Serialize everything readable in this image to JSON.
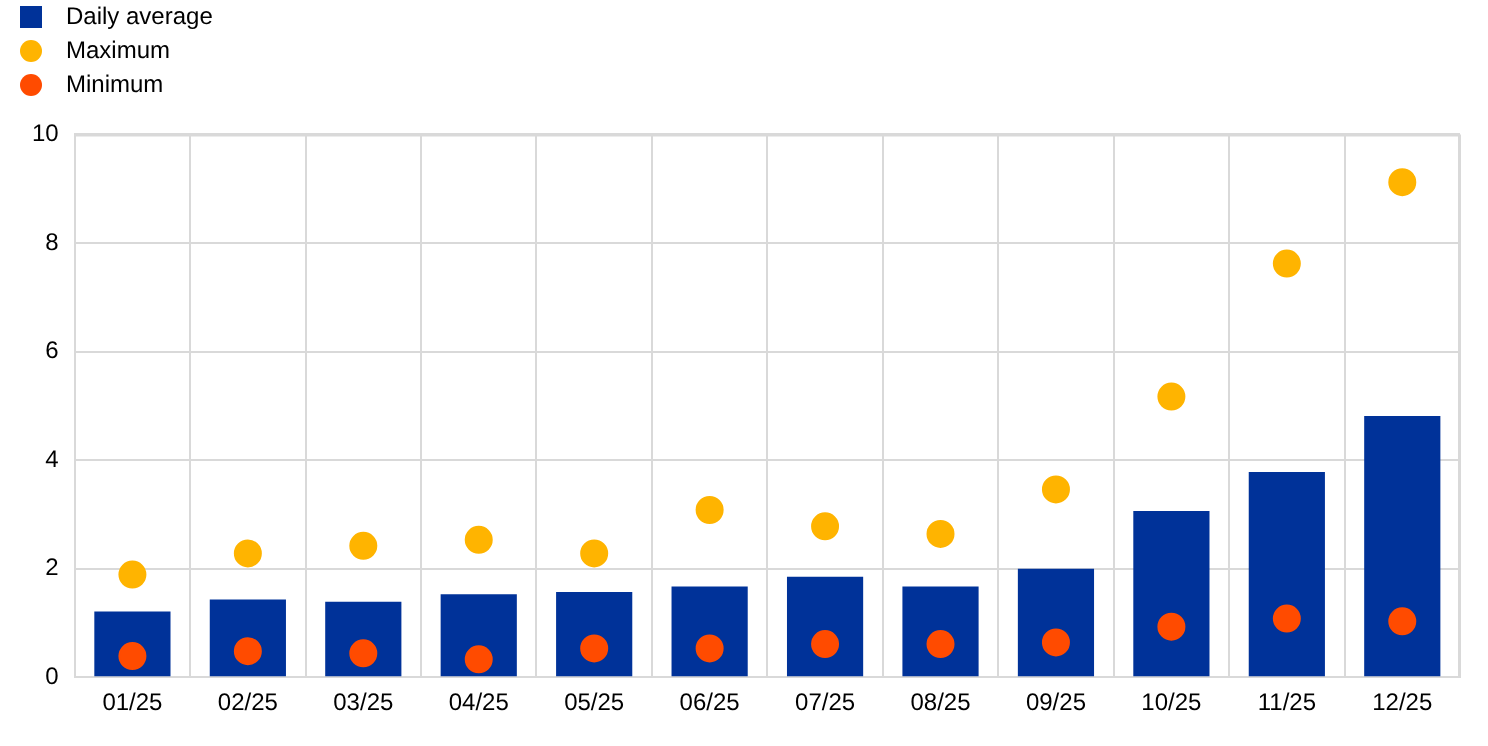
{
  "chart_data": {
    "type": "bar",
    "categories": [
      "01/25",
      "02/25",
      "03/25",
      "04/25",
      "05/25",
      "06/25",
      "07/25",
      "08/25",
      "09/25",
      "10/25",
      "11/25",
      "12/25"
    ],
    "series": [
      {
        "name": "Daily average",
        "color": "#003299",
        "values": [
          1.21,
          1.43,
          1.39,
          1.53,
          1.57,
          1.67,
          1.85,
          1.67,
          2.0,
          3.06,
          3.78,
          4.81
        ]
      },
      {
        "name": "Maximum",
        "type": "scatter",
        "color": "#ffb400",
        "values": [
          1.89,
          2.28,
          2.42,
          2.53,
          2.28,
          3.08,
          2.78,
          2.64,
          3.46,
          5.17,
          7.62,
          9.12
        ]
      },
      {
        "name": "Minimum",
        "type": "scatter",
        "color": "#ff4b00",
        "values": [
          0.39,
          0.48,
          0.44,
          0.33,
          0.53,
          0.53,
          0.61,
          0.61,
          0.64,
          0.93,
          1.08,
          1.03
        ]
      }
    ],
    "ylim": [
      0,
      10
    ],
    "yticks": [
      0,
      2,
      4,
      6,
      8,
      10
    ],
    "grid": true,
    "legend": "top left",
    "marker": "circle"
  }
}
